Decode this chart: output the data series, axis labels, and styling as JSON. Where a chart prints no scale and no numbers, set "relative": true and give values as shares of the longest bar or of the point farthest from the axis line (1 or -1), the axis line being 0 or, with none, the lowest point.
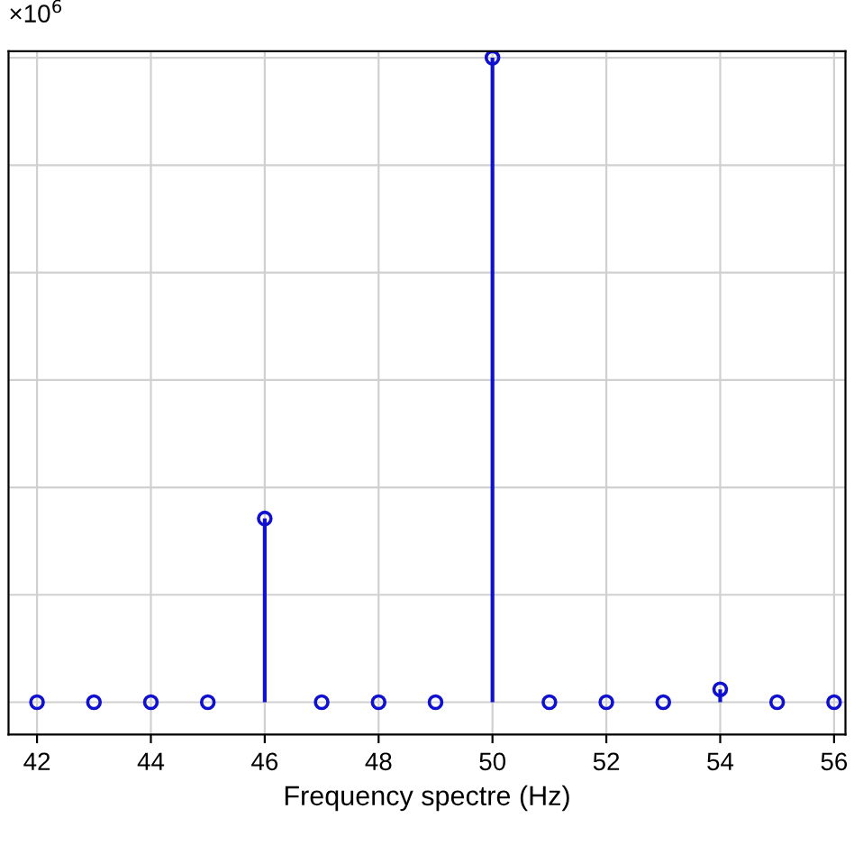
{
  "chart_data": {
    "type": "lollipop",
    "relative": true,
    "xlabel": "Frequency spectre (Hz)",
    "annotations": [
      "×10$^{6}$"
    ],
    "x": [
      42,
      43,
      44,
      45,
      46,
      47,
      48,
      49,
      50,
      51,
      52,
      53,
      54,
      55,
      56
    ],
    "values": [
      0,
      0,
      0,
      0,
      0.285,
      0,
      0,
      0,
      1,
      0,
      0,
      0,
      0.02,
      0,
      0
    ],
    "color": "#1010d0",
    "marker": "circle",
    "grid": true,
    "xlim": [
      41.5,
      56.2
    ],
    "xticks": [
      42,
      44,
      46,
      48,
      50,
      52,
      54,
      56
    ]
  }
}
